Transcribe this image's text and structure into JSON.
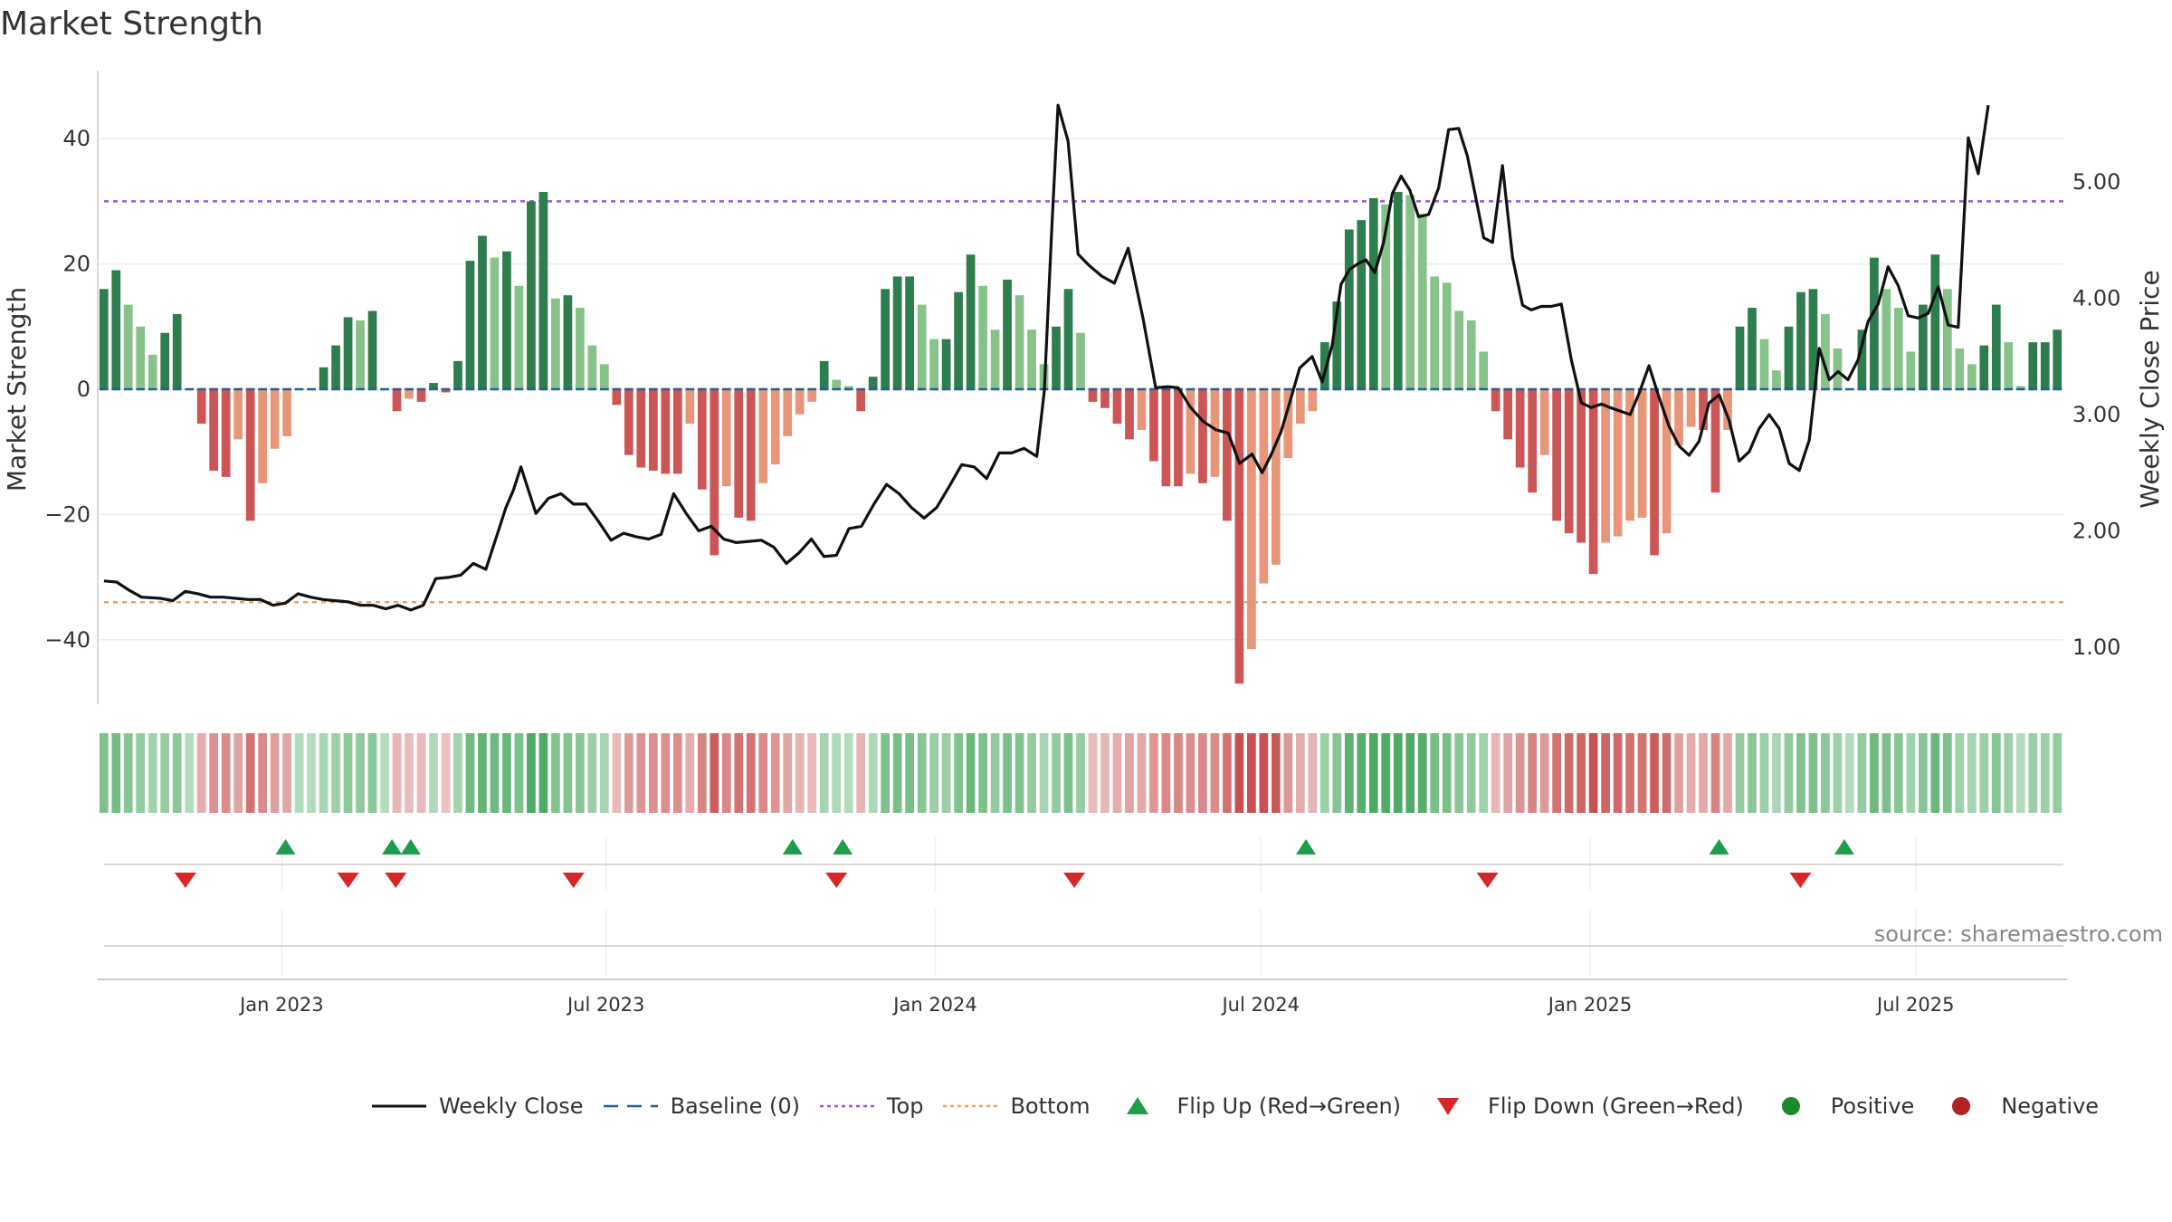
{
  "chart_data": {
    "type": "bar+line",
    "title": "Market Strength",
    "ylabel_left": "Market Strength",
    "ylabel_right": "Weekly Close Price",
    "ylim_left": [
      -50,
      50
    ],
    "yticks_left": [
      "40",
      "20",
      "0",
      "−20",
      "−40"
    ],
    "yticks_left_values": [
      40,
      20,
      0,
      -20,
      -40
    ],
    "ylim_right": [
      0.47,
      5.83
    ],
    "yticks_right": [
      "5.00",
      "4.00",
      "3.00",
      "2.00",
      "1.00"
    ],
    "yticks_right_values": [
      5,
      4,
      3,
      2,
      1
    ],
    "top_level": 30,
    "bottom_level": -34,
    "x_range_weeks": [
      0,
      157
    ],
    "x_ticks": [
      {
        "label": "Jan 2023",
        "week": 14.7
      },
      {
        "label": "Jul 2023",
        "week": 40.6
      },
      {
        "label": "Jan 2024",
        "week": 66.9
      },
      {
        "label": "Jul 2024",
        "week": 92.9
      },
      {
        "label": "Jan 2025",
        "week": 119.2
      },
      {
        "label": "Jul 2025",
        "week": 145.2
      }
    ],
    "strength": [
      16,
      19,
      13.5,
      10,
      5.5,
      9,
      12,
      0,
      -5.5,
      -13,
      -14,
      -8,
      -21,
      -15,
      -9.5,
      -7.5,
      0,
      0,
      3.5,
      7,
      11.5,
      11,
      12.5,
      0,
      -3.5,
      -1.5,
      -2,
      1,
      -0.5,
      4.5,
      20.5,
      24.5,
      21,
      22,
      16.5,
      30,
      31.5,
      14.5,
      15,
      13,
      7,
      4,
      -2.5,
      -10.5,
      -12.5,
      -13,
      -13.5,
      -13.5,
      -5.5,
      -16,
      -26.5,
      -15.5,
      -20.5,
      -21,
      -15,
      -12,
      -7.5,
      -4,
      -2,
      4.5,
      1.5,
      0.5,
      -3.5,
      2,
      16,
      18,
      18,
      13.5,
      8,
      8,
      15.5,
      21.5,
      16.5,
      9.5,
      17.5,
      15,
      9.5,
      4,
      10,
      16,
      9,
      -2,
      -3,
      -5.5,
      -8,
      -6.5,
      -11.5,
      -15.5,
      -15.5,
      -13.5,
      -15,
      -14,
      -21,
      -47,
      -41.5,
      -31,
      -28,
      -11,
      -5.5,
      -3.5,
      7.5,
      14,
      25.5,
      27,
      30.5,
      29.5,
      31.5,
      31,
      28,
      18,
      17,
      12.5,
      11,
      6,
      -3.5,
      -8,
      -12.5,
      -16.5,
      -10.5,
      -21,
      -23,
      -24.5,
      -29.5,
      -24.5,
      -23.5,
      -21,
      -20.5,
      -26.5,
      -23,
      -9,
      -6,
      -6.5,
      -16.5,
      -6.5,
      10,
      13,
      8,
      3,
      10,
      15.5,
      16,
      12,
      6.5,
      0,
      9.5,
      21,
      16,
      13,
      6,
      13.5,
      21.5,
      16,
      6.5,
      4,
      7,
      13.5,
      7.5,
      0.5,
      7.5,
      7.5,
      9.5
    ],
    "close": [
      [
        0.5,
        1.57
      ],
      [
        1.5,
        1.56
      ],
      [
        2.5,
        1.49
      ],
      [
        3.5,
        1.43
      ],
      [
        5,
        1.42
      ],
      [
        6,
        1.4
      ],
      [
        7,
        1.48
      ],
      [
        8,
        1.46
      ],
      [
        9,
        1.43
      ],
      [
        10,
        1.43
      ],
      [
        11,
        1.42
      ],
      [
        12,
        1.41
      ],
      [
        13,
        1.41
      ],
      [
        14,
        1.36
      ],
      [
        15,
        1.38
      ],
      [
        16,
        1.46
      ],
      [
        17,
        1.43
      ],
      [
        18,
        1.41
      ],
      [
        19,
        1.4
      ],
      [
        20,
        1.39
      ],
      [
        21,
        1.36
      ],
      [
        22,
        1.36
      ],
      [
        23,
        1.33
      ],
      [
        24,
        1.36
      ],
      [
        25,
        1.32
      ],
      [
        26,
        1.36
      ],
      [
        27,
        1.59
      ],
      [
        28,
        1.6
      ],
      [
        29,
        1.62
      ],
      [
        30,
        1.72
      ],
      [
        31,
        1.67
      ],
      [
        32,
        2.0
      ],
      [
        32.6,
        2.2
      ],
      [
        33.2,
        2.35
      ],
      [
        33.8,
        2.55
      ],
      [
        35,
        2.15
      ],
      [
        36,
        2.28
      ],
      [
        37,
        2.32
      ],
      [
        38,
        2.23
      ],
      [
        39,
        2.23
      ],
      [
        40,
        2.08
      ],
      [
        41,
        1.92
      ],
      [
        42,
        1.98
      ],
      [
        43,
        1.95
      ],
      [
        44,
        1.93
      ],
      [
        45,
        1.97
      ],
      [
        46,
        2.32
      ],
      [
        47,
        2.15
      ],
      [
        48,
        2.0
      ],
      [
        49,
        2.04
      ],
      [
        50,
        1.93
      ],
      [
        51,
        1.9
      ],
      [
        52,
        1.91
      ],
      [
        53,
        1.92
      ],
      [
        54,
        1.86
      ],
      [
        55,
        1.72
      ],
      [
        56,
        1.81
      ],
      [
        57,
        1.93
      ],
      [
        58,
        1.78
      ],
      [
        59,
        1.79
      ],
      [
        60,
        2.02
      ],
      [
        61,
        2.04
      ],
      [
        62,
        2.23
      ],
      [
        63,
        2.4
      ],
      [
        64,
        2.32
      ],
      [
        65,
        2.2
      ],
      [
        66,
        2.11
      ],
      [
        67,
        2.2
      ],
      [
        68,
        2.38
      ],
      [
        69,
        2.57
      ],
      [
        70,
        2.55
      ],
      [
        71,
        2.45
      ],
      [
        72,
        2.67
      ],
      [
        73,
        2.67
      ],
      [
        74,
        2.71
      ],
      [
        75,
        2.64
      ],
      [
        75.6,
        3.2
      ],
      [
        76.2,
        4.6
      ],
      [
        76.7,
        5.66
      ],
      [
        77.5,
        5.35
      ],
      [
        78.3,
        4.38
      ],
      [
        79.2,
        4.28
      ],
      [
        80.2,
        4.19
      ],
      [
        81.2,
        4.13
      ],
      [
        82.3,
        4.43
      ],
      [
        83.5,
        3.82
      ],
      [
        84.5,
        3.23
      ],
      [
        85.5,
        3.24
      ],
      [
        86.3,
        3.23
      ],
      [
        87.3,
        3.06
      ],
      [
        88.3,
        2.94
      ],
      [
        89.3,
        2.87
      ],
      [
        90.3,
        2.84
      ],
      [
        91.2,
        2.58
      ],
      [
        92.2,
        2.66
      ],
      [
        93,
        2.5
      ],
      [
        93.7,
        2.65
      ],
      [
        94.5,
        2.85
      ],
      [
        95.2,
        3.1
      ],
      [
        96,
        3.4
      ],
      [
        97,
        3.5
      ],
      [
        97.8,
        3.28
      ],
      [
        98.6,
        3.6
      ],
      [
        99.3,
        4.12
      ],
      [
        100,
        4.25
      ],
      [
        100.7,
        4.3
      ],
      [
        101.3,
        4.33
      ],
      [
        102,
        4.22
      ],
      [
        102.7,
        4.48
      ],
      [
        103.4,
        4.9
      ],
      [
        104.1,
        5.05
      ],
      [
        104.8,
        4.93
      ],
      [
        105.5,
        4.7
      ],
      [
        106.3,
        4.72
      ],
      [
        107.1,
        4.95
      ],
      [
        107.9,
        5.45
      ],
      [
        108.7,
        5.46
      ],
      [
        109.4,
        5.22
      ],
      [
        110,
        4.9
      ],
      [
        110.7,
        4.52
      ],
      [
        111.4,
        4.48
      ],
      [
        112.2,
        5.14
      ],
      [
        113,
        4.35
      ],
      [
        113.8,
        3.94
      ],
      [
        114.5,
        3.9
      ],
      [
        115.3,
        3.93
      ],
      [
        116.1,
        3.93
      ],
      [
        116.9,
        3.95
      ],
      [
        117.7,
        3.47
      ],
      [
        118.5,
        3.1
      ],
      [
        119.3,
        3.06
      ],
      [
        120.1,
        3.09
      ],
      [
        120.8,
        3.06
      ],
      [
        121.6,
        3.03
      ],
      [
        122.4,
        3.0
      ],
      [
        123.1,
        3.18
      ],
      [
        123.9,
        3.42
      ],
      [
        124.7,
        3.15
      ],
      [
        125.5,
        2.9
      ],
      [
        126.3,
        2.73
      ],
      [
        127.1,
        2.65
      ],
      [
        127.9,
        2.77
      ],
      [
        128.7,
        3.1
      ],
      [
        129.5,
        3.17
      ],
      [
        130.3,
        2.95
      ],
      [
        131.1,
        2.6
      ],
      [
        131.9,
        2.68
      ],
      [
        132.7,
        2.88
      ],
      [
        133.5,
        3.0
      ],
      [
        134.3,
        2.88
      ],
      [
        135.1,
        2.58
      ],
      [
        135.9,
        2.52
      ],
      [
        136.7,
        2.78
      ],
      [
        137.5,
        3.57
      ],
      [
        138.3,
        3.3
      ],
      [
        139,
        3.37
      ],
      [
        139.8,
        3.3
      ],
      [
        140.6,
        3.47
      ],
      [
        141.4,
        3.8
      ],
      [
        142.2,
        3.95
      ],
      [
        143,
        4.27
      ],
      [
        143.8,
        4.11
      ],
      [
        144.6,
        3.85
      ],
      [
        145.4,
        3.83
      ],
      [
        146.2,
        3.87
      ],
      [
        147,
        4.1
      ],
      [
        147.8,
        3.77
      ],
      [
        148.6,
        3.75
      ],
      [
        149.4,
        5.38
      ],
      [
        150.2,
        5.07
      ],
      [
        151,
        5.66
      ]
    ],
    "flip_up_weeks": [
      15,
      23.5,
      25,
      55.5,
      59.5,
      96.5,
      129.5,
      139.5
    ],
    "flip_down_weeks": [
      7,
      20,
      23.8,
      38,
      59,
      78,
      111,
      136
    ]
  },
  "labels": {
    "title": "Market Strength",
    "source": "source: sharemaestro.com"
  },
  "legend": [
    {
      "label": "Weekly Close",
      "symbol": "line",
      "color": "#111111"
    },
    {
      "label": "Baseline (0)",
      "symbol": "dash",
      "color": "#1f5f9e"
    },
    {
      "label": "Top",
      "symbol": "dot",
      "color": "#9b59d0"
    },
    {
      "label": "Bottom",
      "symbol": "dot",
      "color": "#f0a060"
    },
    {
      "label": "Flip Up (Red→Green)",
      "symbol": "tri-up",
      "color": "#1e9e4a"
    },
    {
      "label": "Flip Down (Green→Red)",
      "symbol": "tri-down",
      "color": "#d62728"
    },
    {
      "label": "Positive",
      "symbol": "circle",
      "color": "#1a8a2a"
    },
    {
      "label": "Negative",
      "symbol": "circle",
      "color": "#b22222"
    }
  ],
  "colors": {
    "pos_strong": "#2e7d4f",
    "pos_light": "#86c28a",
    "neg_strong": "#cc5555",
    "neg_light": "#e8967a",
    "price_line": "#111111",
    "top_line": "#9b59d0",
    "bottom_line": "#f0a060",
    "baseline": "#1f5f9e"
  }
}
